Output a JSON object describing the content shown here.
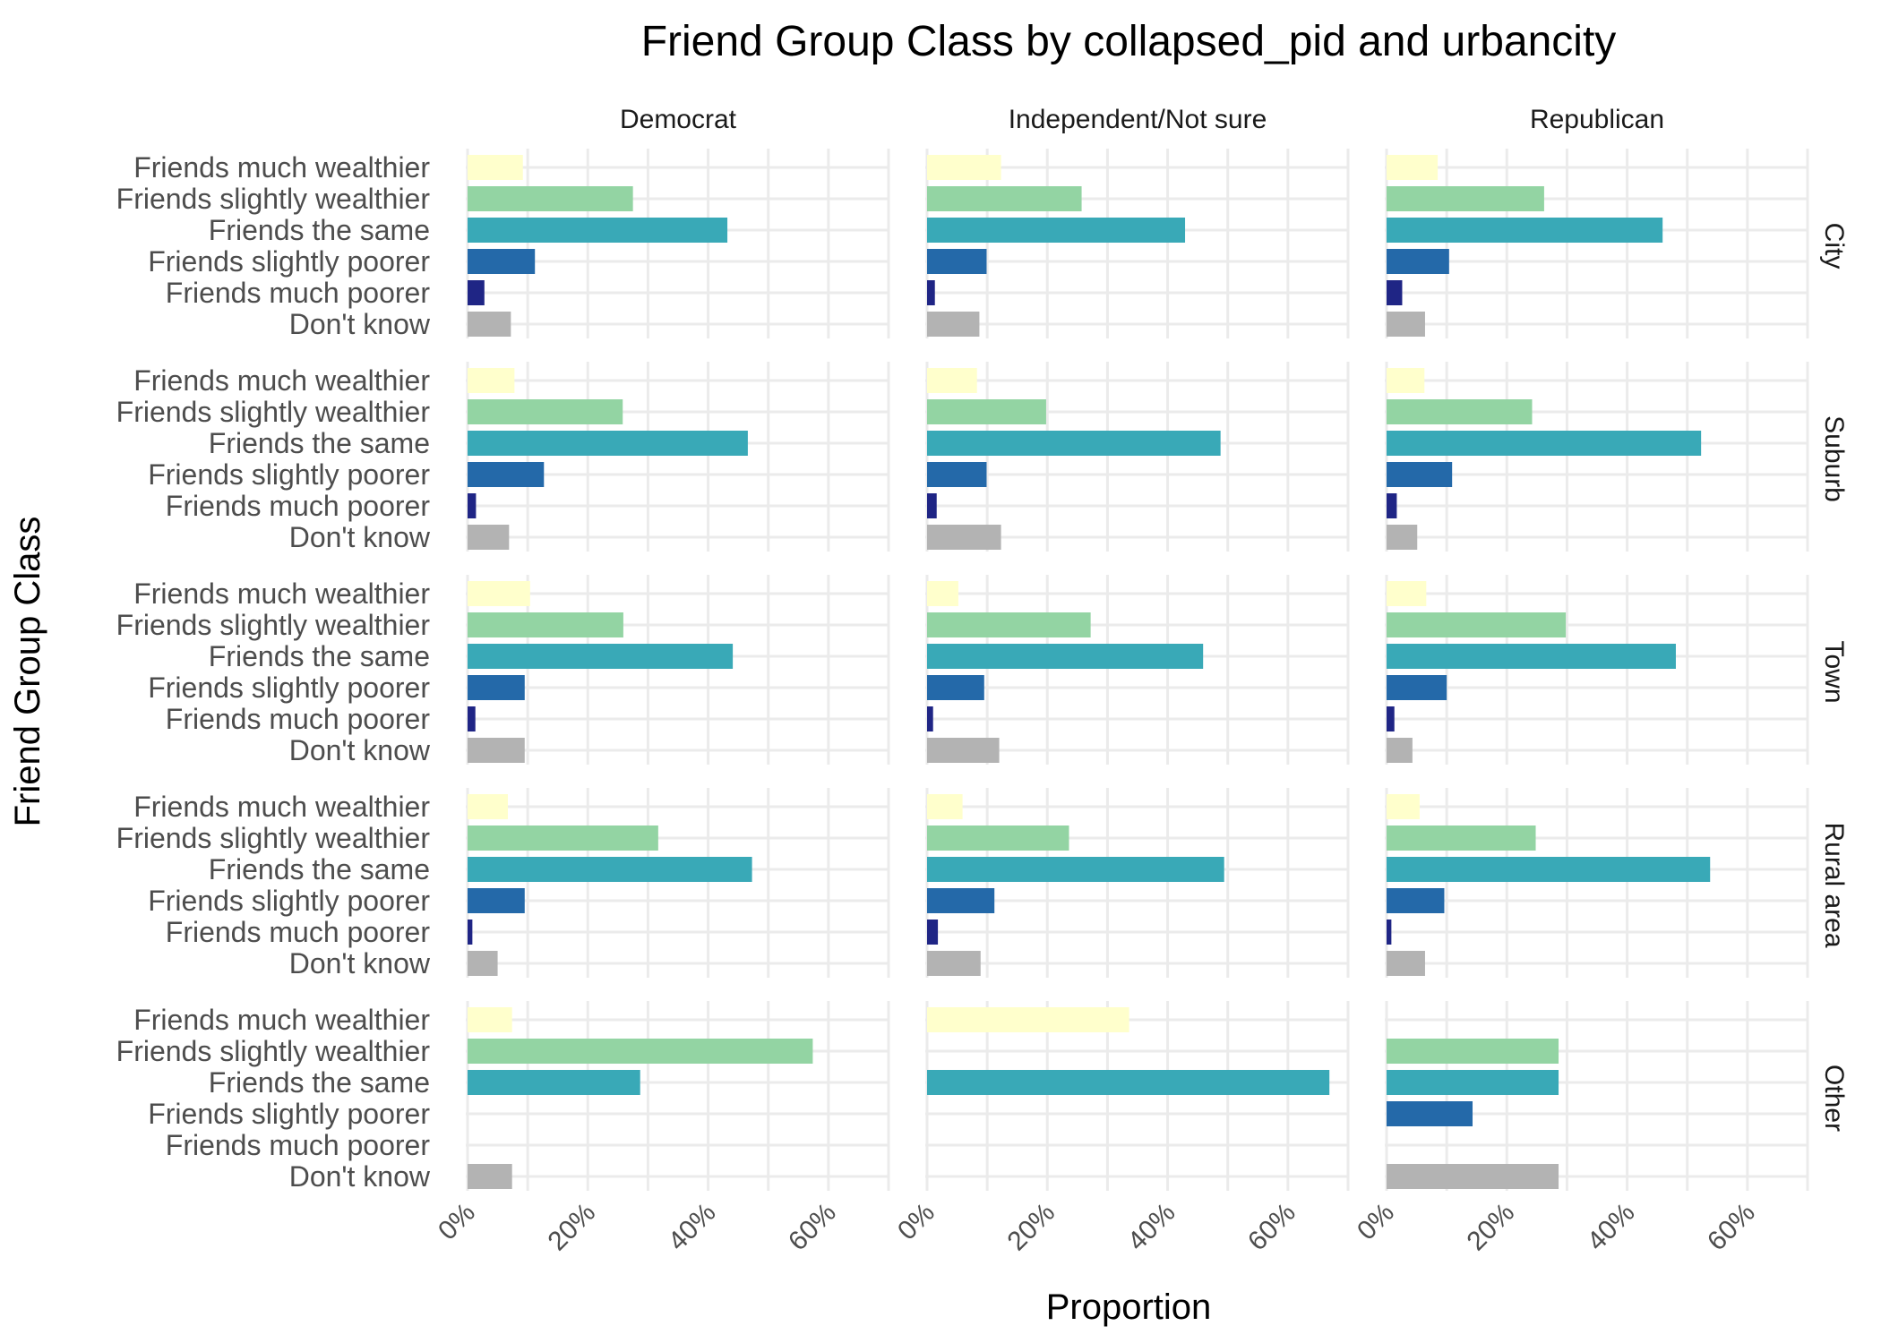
{
  "chart_data": {
    "type": "bar",
    "orientation": "horizontal",
    "faceted": true,
    "title": "Friend Group Class by collapsed_pid and urbancity",
    "xlabel": "Proportion",
    "ylabel": "Friend Group Class",
    "xlim": [
      0,
      0.7
    ],
    "x_tick_values": [
      0,
      0.2,
      0.4,
      0.6
    ],
    "x_tick_labels": [
      "0%",
      "20%",
      "40%",
      "60%"
    ],
    "grid": true,
    "legend": "none",
    "columns": [
      "Democrat",
      "Independent/Not sure",
      "Republican"
    ],
    "rows": [
      "City",
      "Suburb",
      "Town",
      "Rural area",
      "Other"
    ],
    "categories": [
      "Friends much wealthier",
      "Friends slightly wealthier",
      "Friends the same",
      "Friends slightly poorer",
      "Friends much poorer",
      "Don't know"
    ],
    "colors": [
      "#ffffcc",
      "#93d4a3",
      "#39a9b7",
      "#2469a9",
      "#1f2585",
      "#b3b3b3"
    ],
    "panels": [
      {
        "column": "Democrat",
        "row": "City",
        "values": [
          0.092,
          0.275,
          0.432,
          0.112,
          0.028,
          0.072
        ]
      },
      {
        "column": "Independent/Not sure",
        "row": "City",
        "values": [
          0.123,
          0.257,
          0.429,
          0.099,
          0.013,
          0.087
        ]
      },
      {
        "column": "Republican",
        "row": "City",
        "values": [
          0.085,
          0.262,
          0.459,
          0.104,
          0.026,
          0.064
        ]
      },
      {
        "column": "Democrat",
        "row": "Suburb",
        "values": [
          0.078,
          0.258,
          0.466,
          0.127,
          0.014,
          0.069
        ]
      },
      {
        "column": "Independent/Not sure",
        "row": "Suburb",
        "values": [
          0.083,
          0.198,
          0.488,
          0.099,
          0.016,
          0.123
        ]
      },
      {
        "column": "Republican",
        "row": "Suburb",
        "values": [
          0.063,
          0.242,
          0.523,
          0.109,
          0.017,
          0.051
        ]
      },
      {
        "column": "Democrat",
        "row": "Town",
        "values": [
          0.104,
          0.259,
          0.441,
          0.095,
          0.013,
          0.095
        ]
      },
      {
        "column": "Independent/Not sure",
        "row": "Town",
        "values": [
          0.052,
          0.272,
          0.459,
          0.095,
          0.01,
          0.12
        ]
      },
      {
        "column": "Republican",
        "row": "Town",
        "values": [
          0.066,
          0.298,
          0.481,
          0.1,
          0.013,
          0.043
        ]
      },
      {
        "column": "Democrat",
        "row": "Rural area",
        "values": [
          0.067,
          0.317,
          0.473,
          0.095,
          0.008,
          0.05
        ]
      },
      {
        "column": "Independent/Not sure",
        "row": "Rural area",
        "values": [
          0.059,
          0.236,
          0.494,
          0.112,
          0.018,
          0.089
        ]
      },
      {
        "column": "Republican",
        "row": "Rural area",
        "values": [
          0.055,
          0.248,
          0.538,
          0.096,
          0.008,
          0.064
        ]
      },
      {
        "column": "Democrat",
        "row": "Other",
        "values": [
          0.074,
          0.574,
          0.287,
          0.0,
          0.0,
          0.074
        ]
      },
      {
        "column": "Independent/Not sure",
        "row": "Other",
        "values": [
          0.336,
          0.0,
          0.669,
          0.0,
          0.0,
          0.0
        ]
      },
      {
        "column": "Republican",
        "row": "Other",
        "values": [
          0.0,
          0.286,
          0.286,
          0.143,
          0.0,
          0.286
        ]
      }
    ]
  }
}
